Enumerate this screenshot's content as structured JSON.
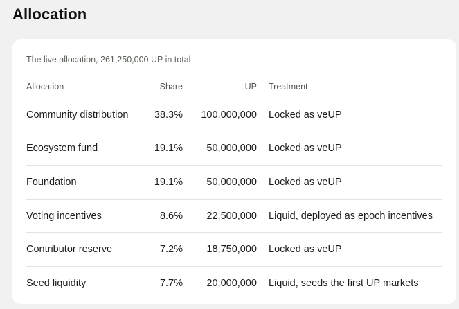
{
  "page": {
    "title": "Allocation"
  },
  "card": {
    "caption": "The live allocation, 261,250,000 UP in total",
    "columns": {
      "allocation": "Allocation",
      "share": "Share",
      "up": "UP",
      "treatment": "Treatment"
    },
    "rows": [
      {
        "allocation": "Community distribution",
        "share": "38.3%",
        "up": "100,000,000",
        "treatment": "Locked as veUP"
      },
      {
        "allocation": "Ecosystem fund",
        "share": "19.1%",
        "up": "50,000,000",
        "treatment": "Locked as veUP"
      },
      {
        "allocation": "Foundation",
        "share": "19.1%",
        "up": "50,000,000",
        "treatment": "Locked as veUP"
      },
      {
        "allocation": "Voting incentives",
        "share": "8.6%",
        "up": "22,500,000",
        "treatment": "Liquid, deployed as epoch incentives"
      },
      {
        "allocation": "Contributor reserve",
        "share": "7.2%",
        "up": "18,750,000",
        "treatment": "Locked as veUP"
      },
      {
        "allocation": "Seed liquidity",
        "share": "7.7%",
        "up": "20,000,000",
        "treatment": "Liquid, seeds the first UP markets"
      }
    ]
  }
}
